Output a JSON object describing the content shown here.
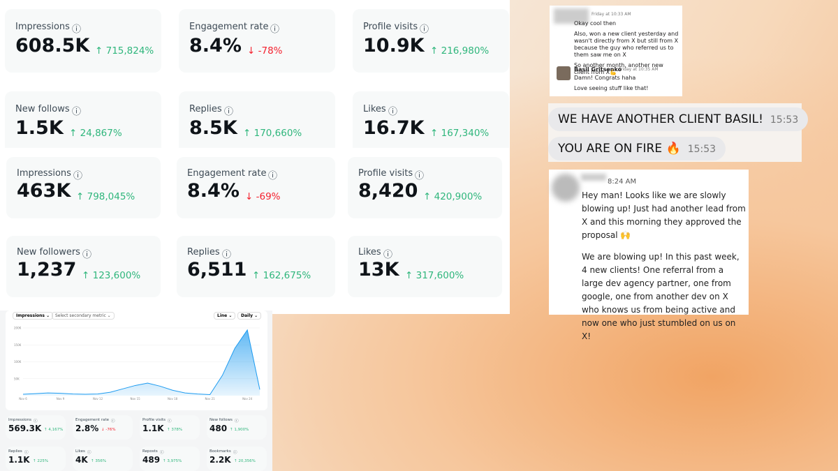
{
  "panels": [
    {
      "cards": [
        {
          "label": "Impressions",
          "value": "608.5K",
          "change": "↑ 715,824%"
        },
        {
          "label": "Engagement rate",
          "value": "8.4%",
          "change": "↓ -78%"
        },
        {
          "label": "Profile visits",
          "value": "10.9K",
          "change": "↑ 216,980%"
        },
        {
          "label": "New follows",
          "value": "1.5K",
          "change": "↑ 24,867%"
        },
        {
          "label": "Replies",
          "value": "8.5K",
          "change": "↑ 170,660%"
        },
        {
          "label": "Likes",
          "value": "16.7K",
          "change": "↑ 167,340%"
        }
      ]
    },
    {
      "cards": [
        {
          "label": "Impressions",
          "value": "463K",
          "change": "↑ 798,045%"
        },
        {
          "label": "Engagement rate",
          "value": "8.4%",
          "change": "↓ -69%"
        },
        {
          "label": "Profile visits",
          "value": "8,420",
          "change": "↑ 420,900%"
        },
        {
          "label": "New followers",
          "value": "1,237",
          "change": "↑ 123,600%"
        },
        {
          "label": "Replies",
          "value": "6,511",
          "change": "↑ 162,675%"
        },
        {
          "label": "Likes",
          "value": "13K",
          "change": "↑ 317,600%"
        }
      ]
    }
  ],
  "analytics": {
    "metric": "Impressions",
    "secondary": "Select secondary metric",
    "chart_type": "Line",
    "interval": "Daily",
    "chart_data": {
      "type": "area",
      "color": "#1d9bf0",
      "categories": [
        "Nov 6",
        null,
        null,
        "Nov 9",
        null,
        null,
        "Nov 12",
        null,
        null,
        "Nov 15",
        null,
        null,
        "Nov 18",
        null,
        null,
        "Nov 21",
        null,
        null,
        "Nov 24",
        null
      ],
      "values": [
        4000,
        6000,
        8000,
        7000,
        5000,
        4000,
        5000,
        10000,
        20000,
        30000,
        37000,
        28000,
        16000,
        8000,
        5000,
        3000,
        60000,
        140000,
        194000,
        18000
      ],
      "ylim": [
        0,
        200000
      ],
      "yticks": [
        {
          "value": 50000,
          "label": "50K"
        },
        {
          "value": 100000,
          "label": "100K"
        },
        {
          "value": 150000,
          "label": "150K"
        },
        {
          "value": 200000,
          "label": "200K"
        }
      ],
      "grid": true
    },
    "cards": [
      {
        "label": "Impressions",
        "value": "569.3K",
        "change": "↑ 4,167%"
      },
      {
        "label": "Engagement rate",
        "value": "2.8%",
        "change": "↓ -76%"
      },
      {
        "label": "Profile visits",
        "value": "1.1K",
        "change": "↑ 378%"
      },
      {
        "label": "New follows",
        "value": "480",
        "change": "↑ 1,900%"
      },
      {
        "label": "Replies",
        "value": "1.1K",
        "change": "↑ 225%"
      },
      {
        "label": "Likes",
        "value": "4K",
        "change": "↑ 356%"
      },
      {
        "label": "Reposts",
        "value": "489",
        "change": "↑ 3,975%"
      },
      {
        "label": "Bookmarks",
        "value": "2.2K",
        "change": "↑ 20,356%"
      }
    ]
  },
  "chat1": {
    "time1": "Friday at 10:33 AM",
    "messages1": [
      "Okay cool then",
      "Also, won a new client yesterday and wasn't directly from X but still from X because the guy who referred us to them saw me on X",
      "So another month, another new client from X💪"
    ],
    "name2": "Basil Gritsenko",
    "time2": "Friday at 10:35 AM",
    "messages2": [
      "Damn! Congrats haha",
      "Love seeing stuff like that!"
    ]
  },
  "chat2": {
    "messages": [
      {
        "text": "WE HAVE ANOTHER CLIENT BASIL!",
        "time": "15:53"
      },
      {
        "text": "YOU ARE ON FIRE 🔥",
        "time": "15:53"
      }
    ]
  },
  "chat3": {
    "time": "8:24 AM",
    "messages": [
      "Hey man! Looks like we are slowly blowing up! Just had another lead from X and this morning they approved the proposal 🙌",
      "We are blowing up! In this past week, 4 new clients! One referral from a large dev agency partner, one from google, one  from another dev on X who knows us from being active and now one who just stumbled on us on X!"
    ]
  }
}
